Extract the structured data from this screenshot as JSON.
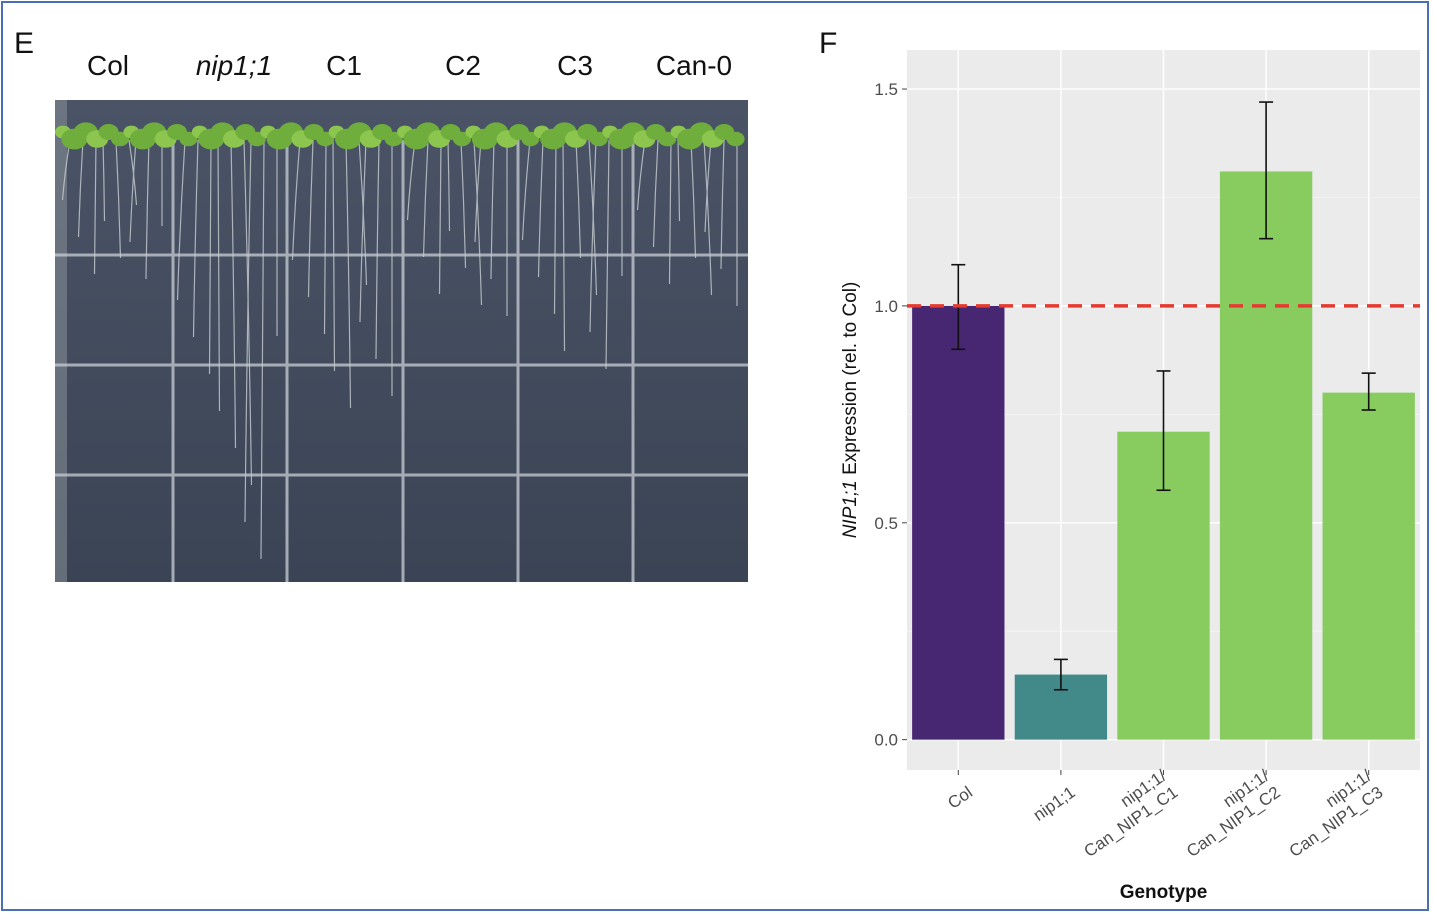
{
  "panel_e": {
    "letter": "E",
    "labels": [
      {
        "text": "Col",
        "italic": false
      },
      {
        "text": "nip1;1",
        "italic": true
      },
      {
        "text": "C1",
        "italic": false
      },
      {
        "text": "C2",
        "italic": false
      },
      {
        "text": "C3",
        "italic": false
      },
      {
        "text": "Can-0",
        "italic": false
      }
    ]
  },
  "panel_f": {
    "letter": "F"
  },
  "chart_data": {
    "type": "bar",
    "categories": [
      "Col",
      "nip1;1",
      "nip1;1/\nCan_NIP1_C1",
      "nip1;1/\nCan_NIP1_C2",
      "nip1;1/\nCan_NIP1_C3"
    ],
    "values": [
      1.0,
      0.15,
      0.71,
      1.31,
      0.8
    ],
    "error_low": [
      0.9,
      0.115,
      0.575,
      1.155,
      0.76
    ],
    "error_high": [
      1.095,
      0.185,
      0.85,
      1.47,
      0.845
    ],
    "colors": [
      "#472672",
      "#428a8a",
      "#88cc60",
      "#88cc60",
      "#88cc60"
    ],
    "xlabel": "Genotype",
    "ylabel_italic": "NIP1;1",
    "ylabel_rest": " Expression  (rel. to Col)",
    "ylim": [
      -0.07,
      1.59
    ],
    "yticks": [
      0.0,
      0.5,
      1.0,
      1.5
    ],
    "ytick_labels": [
      "0.0",
      "0.5",
      "1.0",
      "1.5"
    ],
    "reference_line": {
      "y": 1.0,
      "color": "#e53a2f",
      "style": "dashed"
    },
    "panel_background": "#ebebeb",
    "grid": true
  }
}
